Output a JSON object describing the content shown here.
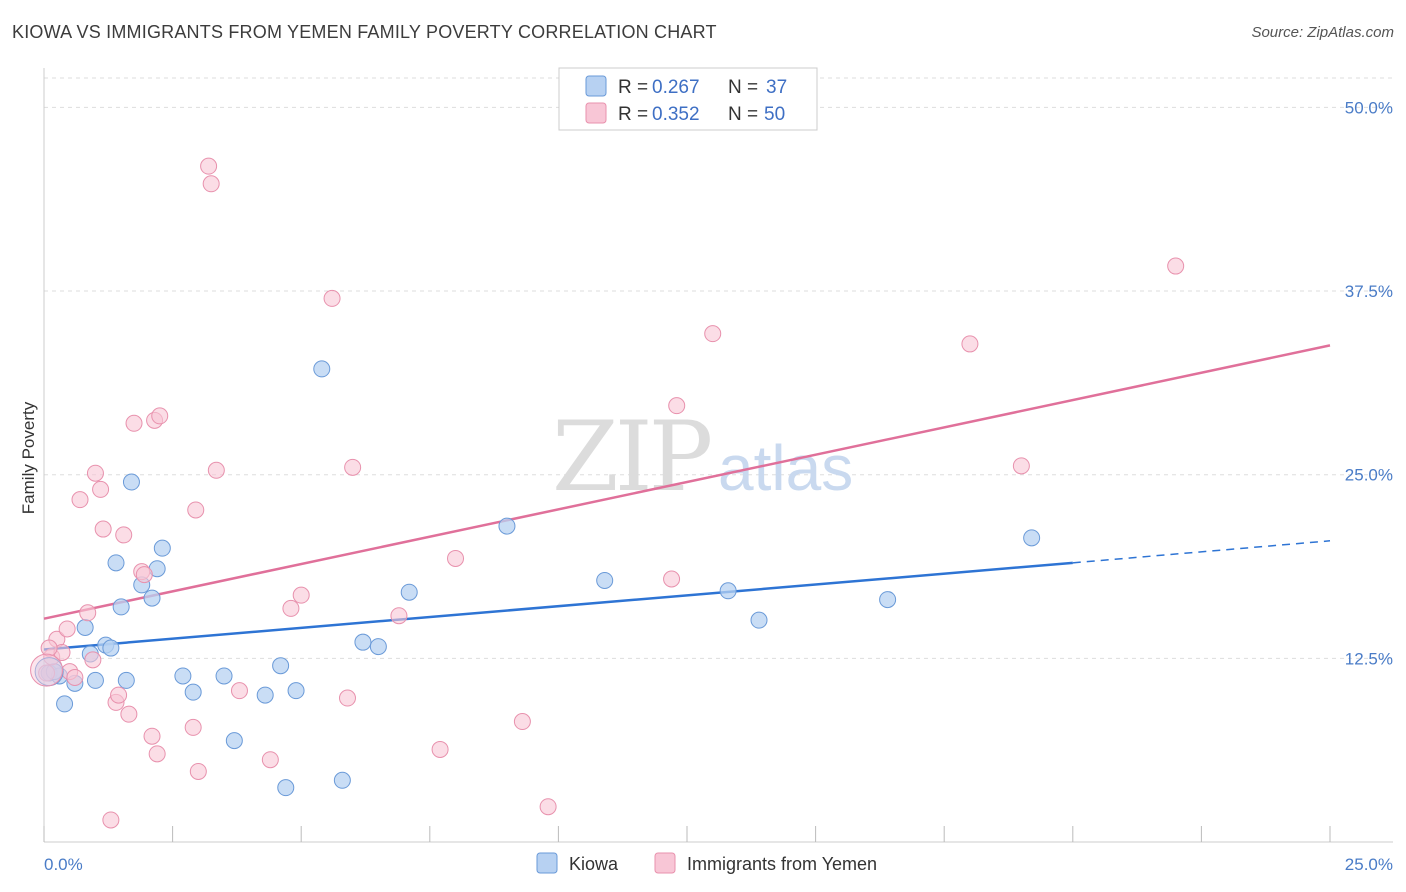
{
  "title": "KIOWA VS IMMIGRANTS FROM YEMEN FAMILY POVERTY CORRELATION CHART",
  "source": "Source: ZipAtlas.com",
  "watermark": {
    "zip": "ZIP",
    "atlas": "atlas"
  },
  "legend": {
    "r_label": "R = ",
    "n_label": "N = ",
    "items": [
      {
        "r": "0.267",
        "n": "37"
      },
      {
        "r": "0.352",
        "n": "50"
      }
    ]
  },
  "colors": {
    "kiowa_fill": "#b7d1f2",
    "kiowa_stroke": "#6a9ad8",
    "kiowa_line": "#2e74d4",
    "yemen_fill": "#f8c6d6",
    "yemen_stroke": "#e891ad",
    "yemen_line": "#e0709a"
  },
  "chart_data": {
    "type": "scatter",
    "title": "KIOWA VS IMMIGRANTS FROM YEMEN FAMILY POVERTY CORRELATION CHART",
    "xlabel": "",
    "ylabel": "Family Poverty",
    "xlim": [
      0,
      25
    ],
    "ylim": [
      0,
      52
    ],
    "x_tick_labels": [
      "0.0%",
      "25.0%"
    ],
    "y_ticks": [
      12.5,
      25.0,
      37.5,
      50.0
    ],
    "y_tick_labels": [
      "12.5%",
      "25.0%",
      "37.5%",
      "50.0%"
    ],
    "grid": true,
    "series": [
      {
        "name": "Kiowa",
        "r": 0.267,
        "n": 37,
        "trend": {
          "x0": 0,
          "y0": 13.1,
          "x1": 20,
          "y1": 19.0,
          "dash_to_x": 25,
          "dash_to_y": 20.5
        },
        "points": [
          [
            0.1,
            11.5
          ],
          [
            0.3,
            11.3
          ],
          [
            0.4,
            9.4
          ],
          [
            0.6,
            10.8
          ],
          [
            0.8,
            14.6
          ],
          [
            0.9,
            12.8
          ],
          [
            1.0,
            11.0
          ],
          [
            1.2,
            13.4
          ],
          [
            1.3,
            13.2
          ],
          [
            1.4,
            19.0
          ],
          [
            1.5,
            16.0
          ],
          [
            1.6,
            11.0
          ],
          [
            1.7,
            24.5
          ],
          [
            1.9,
            17.5
          ],
          [
            2.1,
            16.6
          ],
          [
            2.2,
            18.6
          ],
          [
            2.3,
            20.0
          ],
          [
            2.7,
            11.3
          ],
          [
            2.9,
            10.2
          ],
          [
            3.5,
            11.3
          ],
          [
            3.7,
            6.9
          ],
          [
            4.3,
            10.0
          ],
          [
            4.6,
            12.0
          ],
          [
            4.7,
            3.7
          ],
          [
            4.9,
            10.3
          ],
          [
            5.4,
            32.2
          ],
          [
            5.8,
            4.2
          ],
          [
            6.2,
            13.6
          ],
          [
            6.5,
            13.3
          ],
          [
            7.1,
            17.0
          ],
          [
            9.0,
            21.5
          ],
          [
            10.9,
            17.8
          ],
          [
            13.3,
            17.1
          ],
          [
            13.9,
            15.1
          ],
          [
            16.4,
            16.5
          ],
          [
            19.2,
            20.7
          ],
          [
            0.2,
            11.6
          ]
        ]
      },
      {
        "name": "Immigrants from Yemen",
        "r": 0.352,
        "n": 50,
        "trend": {
          "x0": 0,
          "y0": 15.2,
          "x1": 25,
          "y1": 33.8
        },
        "points": [
          [
            0.05,
            11.5
          ],
          [
            0.15,
            12.6
          ],
          [
            0.25,
            13.8
          ],
          [
            0.35,
            12.9
          ],
          [
            0.45,
            14.5
          ],
          [
            0.5,
            11.6
          ],
          [
            0.6,
            11.2
          ],
          [
            0.7,
            23.3
          ],
          [
            0.85,
            15.6
          ],
          [
            0.95,
            12.4
          ],
          [
            1.0,
            25.1
          ],
          [
            1.1,
            24.0
          ],
          [
            1.15,
            21.3
          ],
          [
            1.3,
            1.5
          ],
          [
            1.4,
            9.5
          ],
          [
            1.45,
            10.0
          ],
          [
            1.55,
            20.9
          ],
          [
            1.65,
            8.7
          ],
          [
            1.75,
            28.5
          ],
          [
            1.9,
            18.4
          ],
          [
            1.95,
            18.2
          ],
          [
            2.1,
            7.2
          ],
          [
            2.15,
            28.7
          ],
          [
            2.2,
            6.0
          ],
          [
            2.25,
            29.0
          ],
          [
            2.9,
            7.8
          ],
          [
            2.95,
            22.6
          ],
          [
            3.0,
            4.8
          ],
          [
            3.2,
            46.0
          ],
          [
            3.25,
            44.8
          ],
          [
            3.35,
            25.3
          ],
          [
            3.8,
            10.3
          ],
          [
            4.4,
            5.6
          ],
          [
            4.8,
            15.9
          ],
          [
            5.0,
            16.8
          ],
          [
            5.6,
            37.0
          ],
          [
            5.9,
            9.8
          ],
          [
            6.0,
            25.5
          ],
          [
            6.9,
            15.4
          ],
          [
            7.7,
            6.3
          ],
          [
            8.0,
            19.3
          ],
          [
            9.3,
            8.2
          ],
          [
            9.8,
            2.4
          ],
          [
            12.2,
            17.9
          ],
          [
            12.3,
            29.7
          ],
          [
            13.0,
            34.6
          ],
          [
            18.0,
            33.9
          ],
          [
            19.0,
            25.6
          ],
          [
            22.0,
            39.2
          ],
          [
            0.1,
            13.2
          ]
        ]
      }
    ]
  },
  "bottom_legend": [
    "Kiowa",
    "Immigrants from Yemen"
  ]
}
